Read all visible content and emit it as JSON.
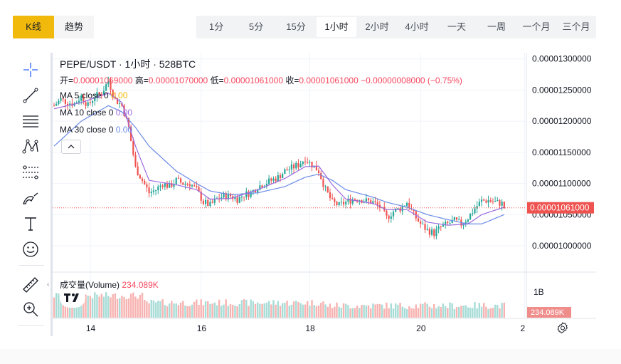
{
  "tabs": [
    {
      "label": "K线",
      "active": true
    },
    {
      "label": "趋势",
      "active": false
    }
  ],
  "intervals": [
    {
      "label": "1分",
      "active": false
    },
    {
      "label": "5分",
      "active": false
    },
    {
      "label": "15分",
      "active": false
    },
    {
      "label": "1小时",
      "active": true
    },
    {
      "label": "2小时",
      "active": false
    },
    {
      "label": "4小时",
      "active": false
    },
    {
      "label": "一天",
      "active": false
    },
    {
      "label": "一周",
      "active": false
    },
    {
      "label": "一个月",
      "active": false
    },
    {
      "label": "三个月",
      "active": false
    }
  ],
  "legend": {
    "symbol": "PEPE/USDT · 1小时 · 528BTC",
    "open_label": "开=",
    "open": "0.00001069000",
    "high_label": "高=",
    "high": "0.00001070000",
    "low_label": "低=",
    "low": "0.00001061000",
    "close_label": "收=",
    "close": "0.00001061000",
    "change": "−0.00000008000 (−0.75%)",
    "ma5": {
      "label": "MA 5 close 0",
      "value": "0.00"
    },
    "ma10": {
      "label": "MA 10 close 0",
      "value": "0.00"
    },
    "ma30": {
      "label": "MA 30 close 0",
      "value": "0.00"
    }
  },
  "volume_legend": {
    "label": "成交量(Volume)",
    "value": "234.089K"
  },
  "current_price_label": "0.00001061000",
  "current_volume_label": "234.089K",
  "toolbar_icons": [
    "crosshair-icon",
    "trend-line-icon",
    "horizontal-lines-icon",
    "pattern-icon",
    "fib-icon",
    "brush-icon",
    "text-icon",
    "emoji-icon",
    "ruler-icon",
    "zoom-in-icon"
  ],
  "colors": {
    "up": "#26a69a",
    "down": "#ef5350",
    "ma5": "#f0b90b",
    "ma10": "#9c6ade",
    "ma30": "#6a8be6",
    "accent": "#f0b90b"
  },
  "chart_data": {
    "type": "candlestick",
    "title": "PEPE/USDT · 1小时 · 528BTC",
    "price_axis": {
      "ticks": [
        "0.00001300000",
        "0.00001250000",
        "0.00001200000",
        "0.00001150000",
        "0.00001100000",
        "0.00001050000",
        "0.00001000000"
      ],
      "range": [
        9.6e-06,
        1.31e-05
      ]
    },
    "volume_axis": {
      "ticks": [
        "1B"
      ]
    },
    "x_ticks": [
      "14",
      "16",
      "18",
      "20",
      "2"
    ],
    "price_anchors": [
      [
        0,
        1.225
      ],
      [
        3,
        1.235
      ],
      [
        6,
        1.23
      ],
      [
        9,
        1.228
      ],
      [
        12,
        1.24
      ],
      [
        15,
        1.225
      ],
      [
        18,
        1.24
      ],
      [
        21,
        1.245
      ],
      [
        24,
        1.265
      ],
      [
        27,
        1.235
      ],
      [
        30,
        1.225
      ],
      [
        33,
        1.19
      ],
      [
        36,
        1.125
      ],
      [
        39,
        1.105
      ],
      [
        42,
        1.085
      ],
      [
        45,
        1.09
      ],
      [
        48,
        1.1
      ],
      [
        51,
        1.095
      ],
      [
        54,
        1.105
      ],
      [
        57,
        1.1
      ],
      [
        60,
        1.1
      ],
      [
        63,
        1.09
      ],
      [
        66,
        1.07
      ],
      [
        69,
        1.065
      ],
      [
        72,
        1.075
      ],
      [
        75,
        1.08
      ],
      [
        78,
        1.08
      ],
      [
        81,
        1.075
      ],
      [
        84,
        1.082
      ],
      [
        87,
        1.085
      ],
      [
        90,
        1.095
      ],
      [
        93,
        1.1
      ],
      [
        96,
        1.105
      ],
      [
        99,
        1.11
      ],
      [
        102,
        1.12
      ],
      [
        105,
        1.125
      ],
      [
        108,
        1.13
      ],
      [
        111,
        1.14
      ],
      [
        114,
        1.13
      ],
      [
        117,
        1.12
      ],
      [
        120,
        1.09
      ],
      [
        123,
        1.07
      ],
      [
        126,
        1.065
      ],
      [
        129,
        1.07
      ],
      [
        132,
        1.075
      ],
      [
        135,
        1.075
      ],
      [
        138,
        1.072
      ],
      [
        141,
        1.07
      ],
      [
        144,
        1.062
      ],
      [
        147,
        1.045
      ],
      [
        150,
        1.055
      ],
      [
        153,
        1.06
      ],
      [
        156,
        1.07
      ],
      [
        159,
        1.05
      ],
      [
        162,
        1.035
      ],
      [
        165,
        1.025
      ],
      [
        168,
        1.02
      ],
      [
        171,
        1.03
      ],
      [
        174,
        1.035
      ],
      [
        177,
        1.04
      ],
      [
        180,
        1.035
      ],
      [
        183,
        1.045
      ],
      [
        186,
        1.06
      ],
      [
        189,
        1.072
      ],
      [
        192,
        1.073
      ],
      [
        195,
        1.07
      ],
      [
        198,
        1.068
      ],
      [
        199,
        1.061
      ]
    ],
    "ma5": [
      [
        0,
        1.225
      ],
      [
        12,
        1.235
      ],
      [
        24,
        1.255
      ],
      [
        30,
        1.225
      ],
      [
        36,
        1.13
      ],
      [
        42,
        1.09
      ],
      [
        54,
        1.1
      ],
      [
        63,
        1.085
      ],
      [
        69,
        1.07
      ],
      [
        78,
        1.078
      ],
      [
        90,
        1.092
      ],
      [
        102,
        1.115
      ],
      [
        111,
        1.135
      ],
      [
        117,
        1.125
      ],
      [
        123,
        1.08
      ],
      [
        129,
        1.068
      ],
      [
        141,
        1.07
      ],
      [
        147,
        1.052
      ],
      [
        156,
        1.06
      ],
      [
        165,
        1.03
      ],
      [
        174,
        1.032
      ],
      [
        183,
        1.04
      ],
      [
        189,
        1.062
      ],
      [
        199,
        1.065
      ]
    ],
    "ma10": [
      [
        0,
        1.22
      ],
      [
        12,
        1.23
      ],
      [
        24,
        1.245
      ],
      [
        30,
        1.23
      ],
      [
        36,
        1.16
      ],
      [
        42,
        1.105
      ],
      [
        54,
        1.098
      ],
      [
        63,
        1.09
      ],
      [
        69,
        1.075
      ],
      [
        78,
        1.076
      ],
      [
        90,
        1.09
      ],
      [
        102,
        1.108
      ],
      [
        111,
        1.127
      ],
      [
        117,
        1.128
      ],
      [
        123,
        1.098
      ],
      [
        129,
        1.075
      ],
      [
        141,
        1.068
      ],
      [
        147,
        1.058
      ],
      [
        156,
        1.058
      ],
      [
        165,
        1.038
      ],
      [
        174,
        1.033
      ],
      [
        183,
        1.035
      ],
      [
        189,
        1.05
      ],
      [
        199,
        1.062
      ]
    ],
    "ma30": [
      [
        0,
        1.16
      ],
      [
        12,
        1.2
      ],
      [
        24,
        1.225
      ],
      [
        30,
        1.215
      ],
      [
        36,
        1.19
      ],
      [
        42,
        1.16
      ],
      [
        54,
        1.12
      ],
      [
        63,
        1.1
      ],
      [
        69,
        1.088
      ],
      [
        78,
        1.082
      ],
      [
        90,
        1.085
      ],
      [
        102,
        1.095
      ],
      [
        111,
        1.11
      ],
      [
        117,
        1.115
      ],
      [
        123,
        1.105
      ],
      [
        129,
        1.09
      ],
      [
        141,
        1.078
      ],
      [
        147,
        1.07
      ],
      [
        156,
        1.062
      ],
      [
        165,
        1.05
      ],
      [
        174,
        1.042
      ],
      [
        183,
        1.035
      ],
      [
        189,
        1.035
      ],
      [
        199,
        1.05
      ]
    ],
    "current_price": 1.061e-05,
    "current_volume": "234.089K"
  }
}
